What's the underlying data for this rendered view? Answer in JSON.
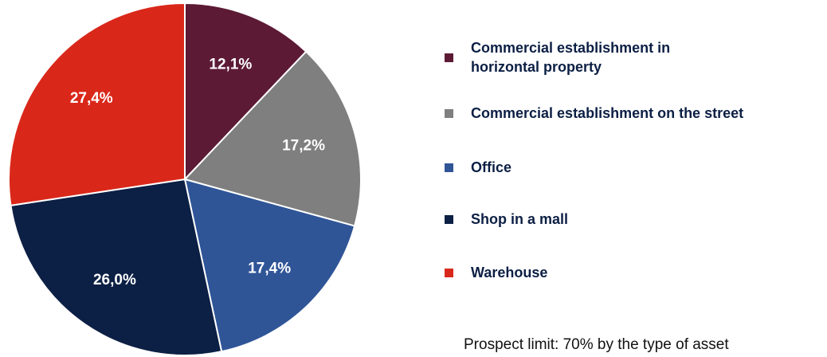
{
  "chart_data": {
    "type": "pie",
    "categories": [
      "Commercial establishment in horizontal property",
      "Commercial establishment on the street",
      "Office",
      "Shop in a mall",
      "Warehouse"
    ],
    "values": [
      12.1,
      17.2,
      17.4,
      26.0,
      27.4
    ],
    "value_labels": [
      "12,1%",
      "17,2%",
      "17,4%",
      "26,0%",
      "27,4%"
    ],
    "colors": [
      "#5c1a35",
      "#7f7f7f",
      "#2f5597",
      "#0c1f44",
      "#d9281a"
    ],
    "annotation": "Prospect limit: 70% by the type of asset"
  }
}
